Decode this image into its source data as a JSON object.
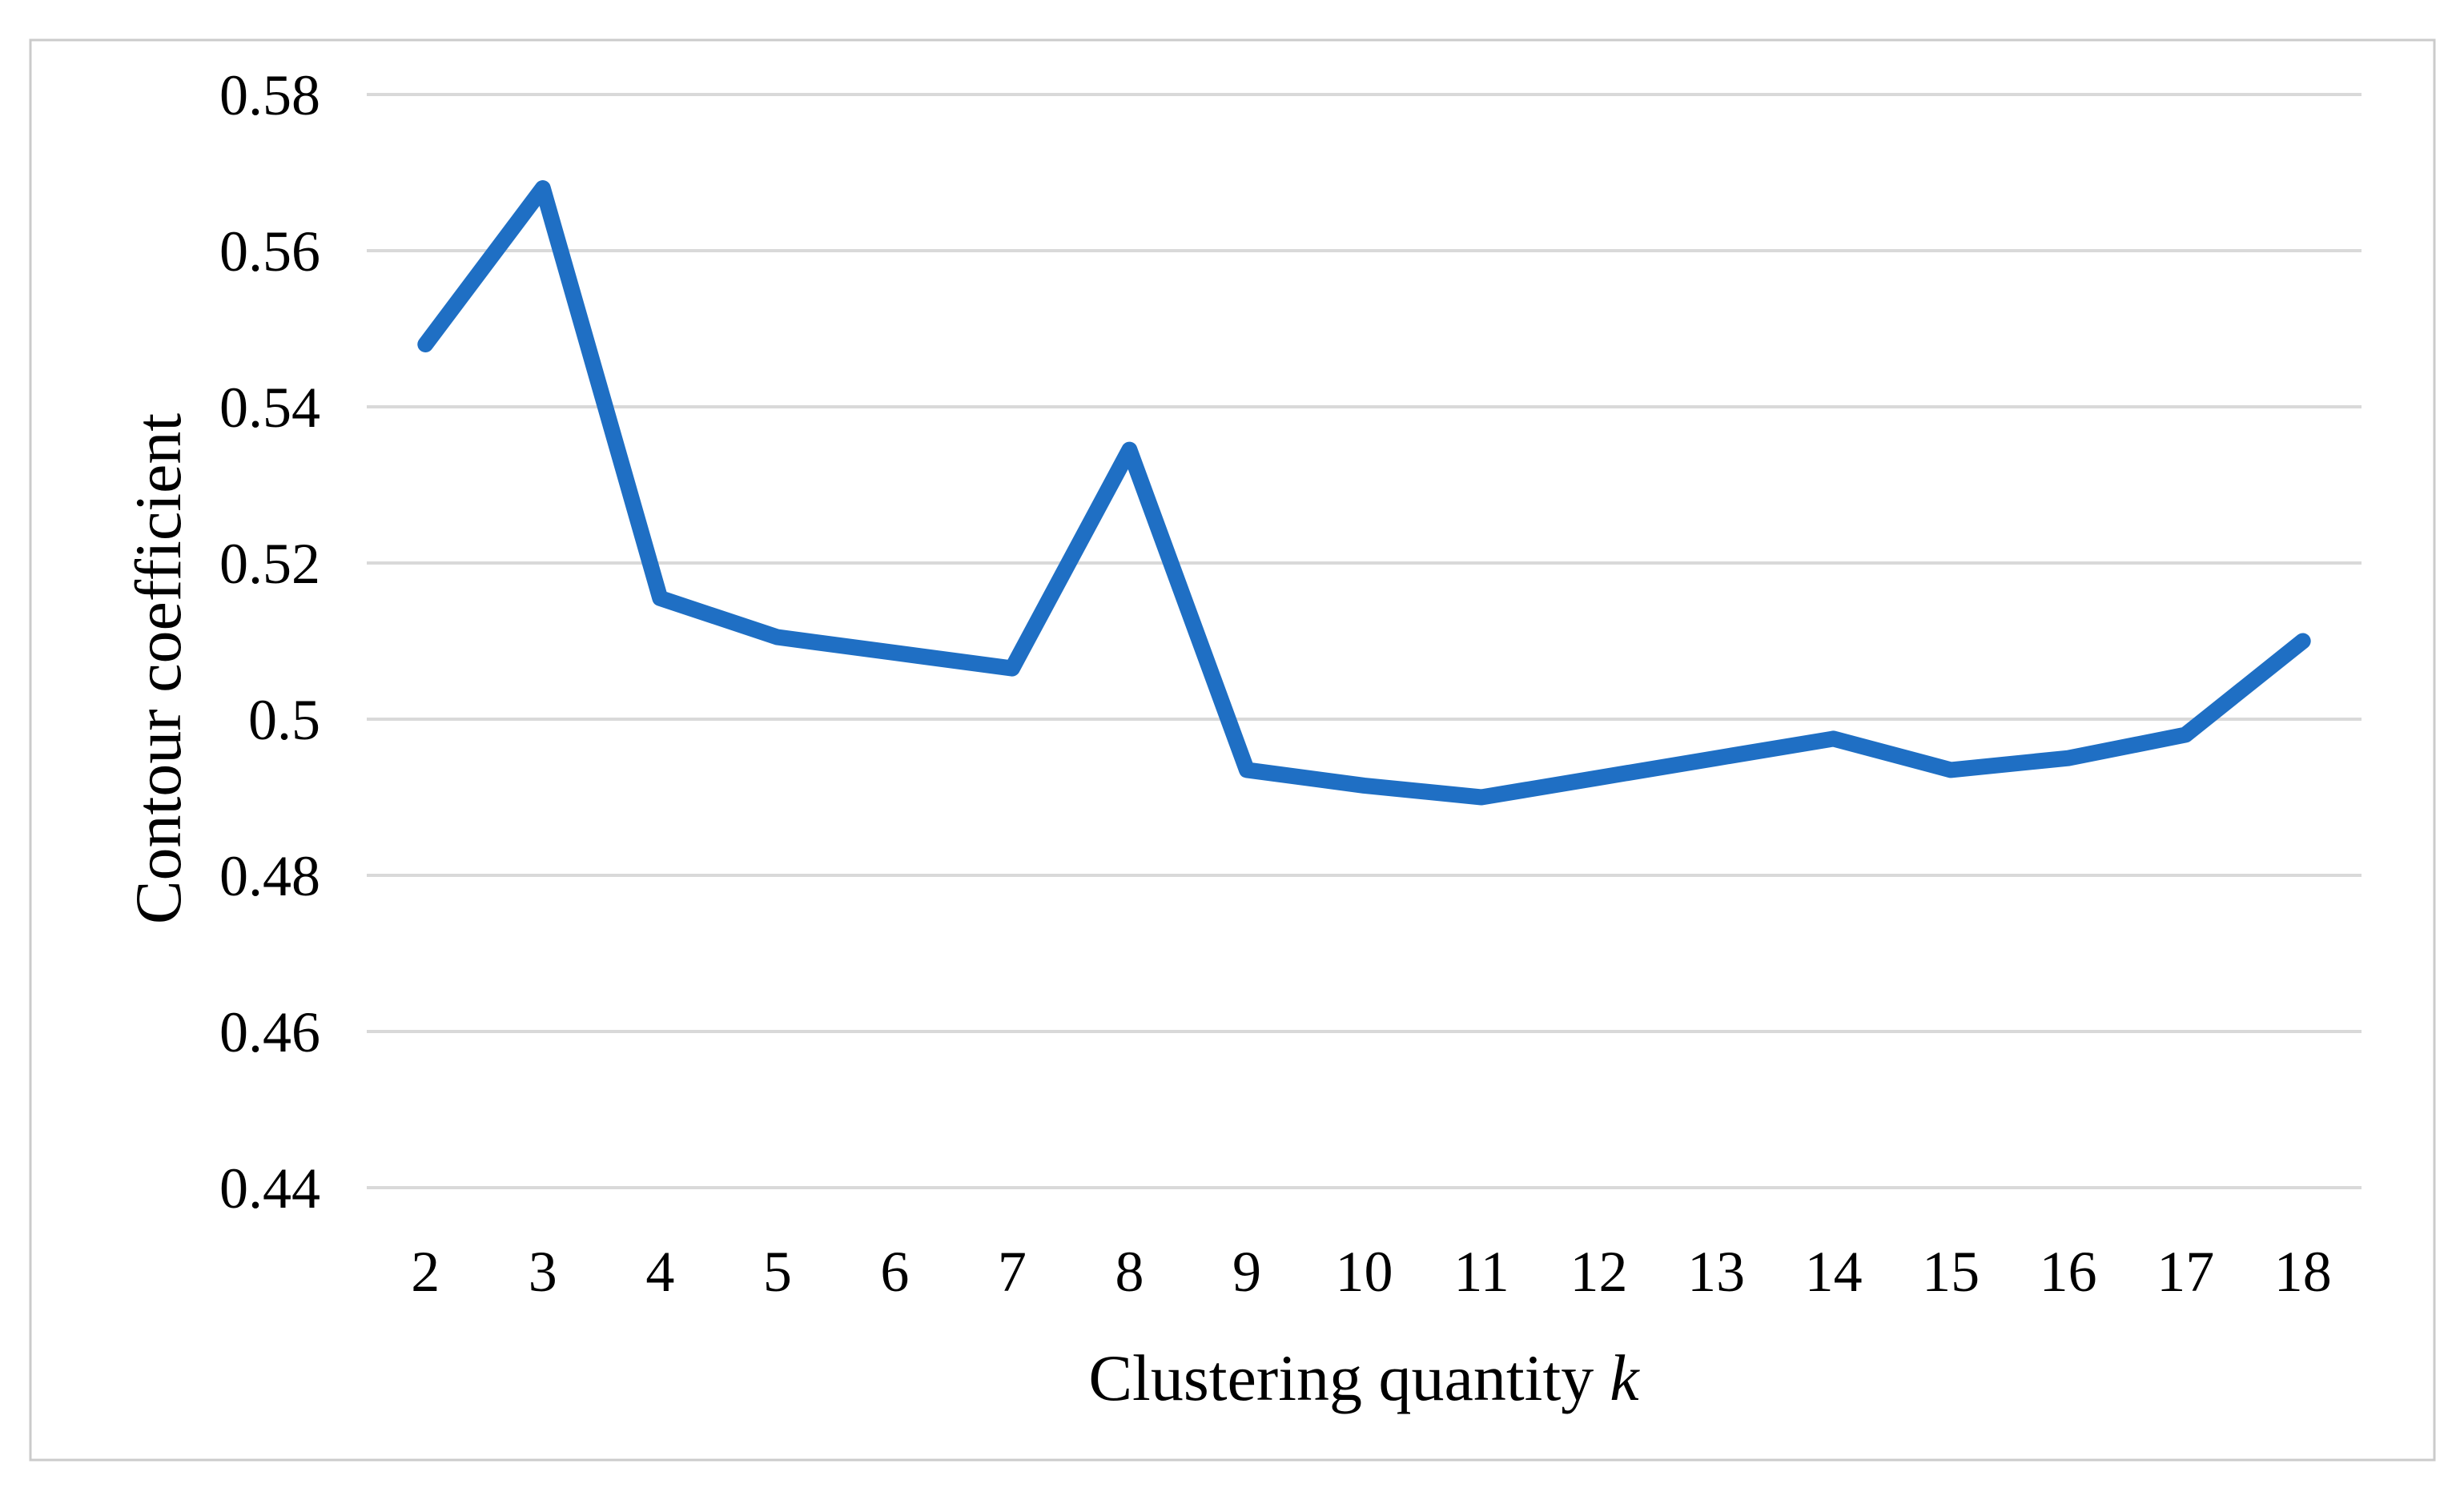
{
  "chart_data": {
    "type": "line",
    "title": "",
    "xlabel": "Clustering quantity k",
    "xlabel_main": "Clustering quantity",
    "xlabel_var": "k",
    "ylabel": "Contour coefficient",
    "x": [
      2,
      3,
      4,
      5,
      6,
      7,
      8,
      9,
      10,
      11,
      12,
      13,
      14,
      15,
      16,
      17,
      18
    ],
    "values": [
      0.548,
      0.568,
      0.5155,
      0.5105,
      0.5085,
      0.5065,
      0.5345,
      0.4935,
      0.4915,
      0.49,
      0.4925,
      0.495,
      0.4975,
      0.4935,
      0.495,
      0.498,
      0.51
    ],
    "x_tick_labels": [
      "2",
      "3",
      "4",
      "5",
      "6",
      "7",
      "8",
      "9",
      "10",
      "11",
      "12",
      "13",
      "14",
      "15",
      "16",
      "17",
      "18"
    ],
    "y_ticks": [
      0.58,
      0.56,
      0.54,
      0.52,
      0.5,
      0.48,
      0.46,
      0.44
    ],
    "y_tick_labels": [
      "0.58",
      "0.56",
      "0.54",
      "0.52",
      "0.5",
      "0.48",
      "0.46",
      "0.44"
    ],
    "ylim": [
      0.44,
      0.58
    ],
    "grid": "horizontal",
    "legend": "none",
    "line_color": "#1F6FC4",
    "gridline_color": "#D9D9D9",
    "frame_color": "#CBCBCB",
    "text_color": "#000000",
    "background_color": "#FFFFFF"
  }
}
